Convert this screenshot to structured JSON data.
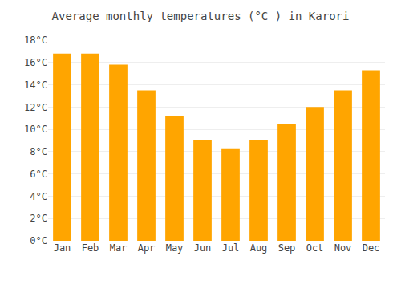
{
  "chart_data": {
    "type": "bar",
    "title": "Average monthly temperatures (°C ) in Karori",
    "categories": [
      "Jan",
      "Feb",
      "Mar",
      "Apr",
      "May",
      "Jun",
      "Jul",
      "Aug",
      "Sep",
      "Oct",
      "Nov",
      "Dec"
    ],
    "values": [
      16.8,
      16.8,
      15.8,
      13.5,
      11.2,
      9.0,
      8.3,
      9.0,
      10.5,
      12.0,
      13.5,
      15.3
    ],
    "color": "#FFA500",
    "ylim": [
      0,
      18
    ],
    "yticks": [
      {
        "value": 0,
        "label": "0°C"
      },
      {
        "value": 2,
        "label": "2°C"
      },
      {
        "value": 4,
        "label": "4°C"
      },
      {
        "value": 6,
        "label": "6°C"
      },
      {
        "value": 8,
        "label": "8°C"
      },
      {
        "value": 10,
        "label": "10°C"
      },
      {
        "value": 12,
        "label": "12°C"
      },
      {
        "value": 14,
        "label": "14°C"
      },
      {
        "value": 16,
        "label": "16°C"
      },
      {
        "value": 18,
        "label": "18°C"
      }
    ],
    "grid": true
  }
}
